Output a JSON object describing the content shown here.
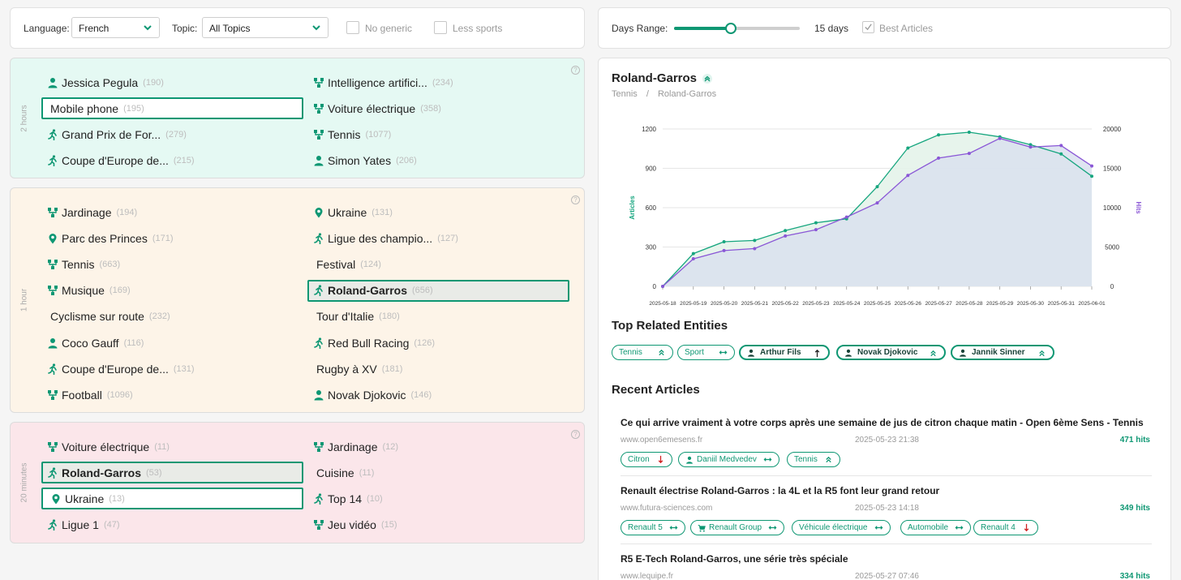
{
  "filters": {
    "language_label": "Language:",
    "language_value": "French",
    "topic_label": "Topic:",
    "topic_value": "All Topics",
    "no_generic_label": "No generic",
    "less_sports_label": "Less sports"
  },
  "days": {
    "label": "Days Range:",
    "value_text": "15 days",
    "value_fraction": 0.45,
    "best_articles_label": "Best Articles",
    "best_articles_checked": true
  },
  "trends": [
    {
      "period": "2 hours",
      "left": [
        {
          "icon": "person",
          "label": "Jessica Pegula",
          "count": "(190)",
          "state": "normal"
        },
        {
          "icon": "none",
          "label": "Mobile phone",
          "count": "(195)",
          "state": "boxed"
        },
        {
          "icon": "athlete",
          "label": "Grand Prix de For...",
          "count": "(279)",
          "state": "normal"
        },
        {
          "icon": "athlete",
          "label": "Coupe d'Europe de...",
          "count": "(215)",
          "state": "normal"
        }
      ],
      "right": [
        {
          "icon": "topic",
          "label": "Intelligence artifici...",
          "count": "(234)",
          "state": "normal"
        },
        {
          "icon": "topic",
          "label": "Voiture électrique",
          "count": "(358)",
          "state": "normal"
        },
        {
          "icon": "topic",
          "label": "Tennis",
          "count": "(1077)",
          "state": "normal"
        },
        {
          "icon": "person",
          "label": "Simon Yates",
          "count": "(206)",
          "state": "normal"
        }
      ]
    },
    {
      "period": "1 hour",
      "left": [
        {
          "icon": "topic",
          "label": "Jardinage",
          "count": "(194)",
          "state": "normal"
        },
        {
          "icon": "pin",
          "label": "Parc des Princes",
          "count": "(171)",
          "state": "normal"
        },
        {
          "icon": "topic",
          "label": "Tennis",
          "count": "(663)",
          "state": "normal"
        },
        {
          "icon": "topic",
          "label": "Musique",
          "count": "(169)",
          "state": "normal"
        },
        {
          "icon": "none",
          "label": "Cyclisme sur route",
          "count": "(232)",
          "state": "normal"
        },
        {
          "icon": "person",
          "label": "Coco Gauff",
          "count": "(116)",
          "state": "normal"
        },
        {
          "icon": "athlete",
          "label": "Coupe d'Europe de...",
          "count": "(131)",
          "state": "normal"
        },
        {
          "icon": "topic",
          "label": "Football",
          "count": "(1096)",
          "state": "normal"
        }
      ],
      "right": [
        {
          "icon": "pin",
          "label": "Ukraine",
          "count": "(131)",
          "state": "normal"
        },
        {
          "icon": "athlete",
          "label": "Ligue des champio...",
          "count": "(127)",
          "state": "normal"
        },
        {
          "icon": "none",
          "label": "Festival",
          "count": "(124)",
          "state": "normal"
        },
        {
          "icon": "athlete",
          "label": "Roland-Garros",
          "count": "(656)",
          "state": "highlight"
        },
        {
          "icon": "none",
          "label": "Tour d'Italie",
          "count": "(180)",
          "state": "normal"
        },
        {
          "icon": "athlete",
          "label": "Red Bull Racing",
          "count": "(126)",
          "state": "normal"
        },
        {
          "icon": "none",
          "label": "Rugby à XV",
          "count": "(181)",
          "state": "normal"
        },
        {
          "icon": "person",
          "label": "Novak Djokovic",
          "count": "(146)",
          "state": "normal"
        }
      ]
    },
    {
      "period": "20 minutes",
      "left": [
        {
          "icon": "topic",
          "label": "Voiture électrique",
          "count": "(11)",
          "state": "normal"
        },
        {
          "icon": "athlete",
          "label": "Roland-Garros",
          "count": "(53)",
          "state": "highlight"
        },
        {
          "icon": "pin",
          "label": "Ukraine",
          "count": "(13)",
          "state": "boxed"
        },
        {
          "icon": "athlete",
          "label": "Ligue 1",
          "count": "(47)",
          "state": "normal"
        }
      ],
      "right": [
        {
          "icon": "topic",
          "label": "Jardinage",
          "count": "(12)",
          "state": "normal"
        },
        {
          "icon": "none",
          "label": "Cuisine",
          "count": "(11)",
          "state": "normal"
        },
        {
          "icon": "athlete",
          "label": "Top 14",
          "count": "(10)",
          "state": "normal"
        },
        {
          "icon": "topic",
          "label": "Jeu vidéo",
          "count": "(15)",
          "state": "normal"
        }
      ]
    }
  ],
  "detail": {
    "title": "Roland-Garros",
    "breadcrumb_root": "Tennis",
    "breadcrumb_sep": "/",
    "breadcrumb_leaf": "Roland-Garros",
    "related_heading": "Top Related Entities",
    "articles_heading": "Recent Articles"
  },
  "related": [
    {
      "label": "Tennis",
      "icon": "none",
      "arrow": "double-up",
      "bold": false
    },
    {
      "label": "Sport",
      "icon": "none",
      "arrow": "flat",
      "bold": false
    },
    {
      "label": "Arthur Fils",
      "icon": "person",
      "arrow": "up",
      "bold": true
    },
    {
      "label": "Novak Djokovic",
      "icon": "person",
      "arrow": "double-up",
      "bold": true
    },
    {
      "label": "Jannik Sinner",
      "icon": "person",
      "arrow": "double-up",
      "bold": true
    }
  ],
  "articles": [
    {
      "title": "Ce qui arrive vraiment à votre corps après une semaine de jus de citron chaque matin - Open 6ème Sens - Tennis",
      "source": "www.open6emesens.fr",
      "date": "2025-05-23 21:38",
      "hits": "471 hits",
      "tags": [
        {
          "label": "Citron",
          "icon": "none",
          "arrow": "down"
        },
        {
          "label": "Daniil Medvedev",
          "icon": "person",
          "arrow": "flat"
        },
        {
          "label": "Tennis",
          "icon": "none",
          "arrow": "double-up"
        }
      ]
    },
    {
      "title": "Renault électrise Roland-Garros : la 4L et la R5 font leur grand retour",
      "source": "www.futura-sciences.com",
      "date": "2025-05-23 14:18",
      "hits": "349 hits",
      "tags": [
        {
          "label": "Renault 5",
          "icon": "none",
          "arrow": "flat"
        },
        {
          "label": "Renault Group",
          "icon": "cart",
          "arrow": "flat"
        },
        {
          "label": "Véhicule électrique",
          "icon": "none",
          "arrow": "flat"
        },
        {
          "label": "Automobile",
          "icon": "none",
          "arrow": "flat"
        },
        {
          "label": "Renault 4",
          "icon": "none",
          "arrow": "down"
        }
      ]
    },
    {
      "title": "R5 E-Tech Roland-Garros, une série très spéciale",
      "source": "www.lequipe.fr",
      "date": "2025-05-27 07:46",
      "hits": "334 hits",
      "tags": []
    }
  ],
  "colors": {
    "accent": "#0e9773",
    "articles_series": "#17a67f",
    "hits_series": "#8a57d6",
    "area_fill": "#d9e1ee"
  },
  "chart_data": {
    "type": "line",
    "x": [
      "2025-05-18",
      "2025-05-19",
      "2025-05-20",
      "2025-05-21",
      "2025-05-22",
      "2025-05-23",
      "2025-05-24",
      "2025-05-25",
      "2025-05-26",
      "2025-05-27",
      "2025-05-28",
      "2025-05-29",
      "2025-05-30",
      "2025-05-31",
      "2025-06-01"
    ],
    "series": [
      {
        "name": "Articles",
        "axis": "left",
        "values": [
          0,
          250,
          340,
          350,
          425,
          485,
          515,
          760,
          1055,
          1155,
          1175,
          1140,
          1080,
          1010,
          840
        ]
      },
      {
        "name": "Hits",
        "axis": "right",
        "values": [
          0,
          3500,
          4550,
          4800,
          6400,
          7200,
          8800,
          10600,
          14100,
          16300,
          16900,
          18800,
          17700,
          17900,
          15300
        ]
      }
    ],
    "ylabel_left": "Articles",
    "ylabel_right": "Hits",
    "ylim_left": [
      0,
      1200
    ],
    "ylim_right": [
      0,
      20000
    ],
    "yticks_left": [
      "0",
      "300",
      "600",
      "900",
      "1200"
    ],
    "yticks_right": [
      "0",
      "5000",
      "10000",
      "15000",
      "20000"
    ],
    "grid": true
  }
}
